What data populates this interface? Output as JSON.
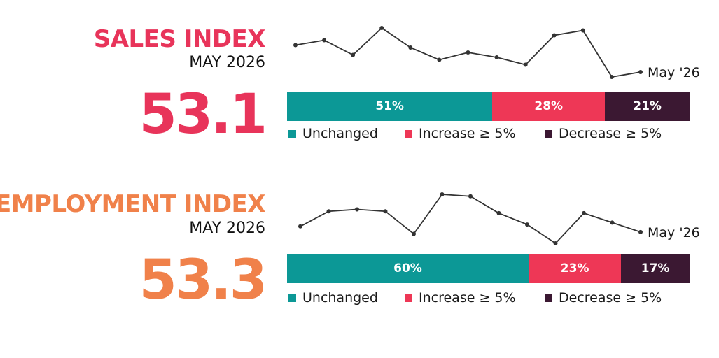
{
  "colors": {
    "sales_title": "#e8345a",
    "employment_title": "#f0814a",
    "unchanged": "#0c9896",
    "increase": "#ee3756",
    "decrease": "#3b1832",
    "line": "#333333"
  },
  "chart_data": [
    {
      "type": "bar",
      "title": "SALES INDEX",
      "subtitle": "MAY 2026",
      "index_value": "53.1",
      "spark_label": "May '26",
      "spark_values": [
        68,
        70,
        64,
        75,
        67,
        62,
        65,
        63,
        60,
        72,
        74,
        55,
        57
      ],
      "categories": [
        "Unchanged",
        "Increase ≥ 5%",
        "Decrease ≥ 5%"
      ],
      "values": [
        51,
        28,
        21
      ],
      "labels": [
        "51%",
        "28%",
        "21%"
      ]
    },
    {
      "type": "bar",
      "title": "EMPLOYMENT INDEX",
      "subtitle": "MAY 2026",
      "index_value": "53.3",
      "spark_label": "May '26",
      "spark_values": [
        64,
        72,
        73,
        72,
        60,
        81,
        80,
        71,
        65,
        55,
        71,
        66,
        61
      ],
      "categories": [
        "Unchanged",
        "Increase ≥ 5%",
        "Decrease ≥ 5%"
      ],
      "values": [
        60,
        23,
        17
      ],
      "labels": [
        "60%",
        "23%",
        "17%"
      ]
    }
  ]
}
